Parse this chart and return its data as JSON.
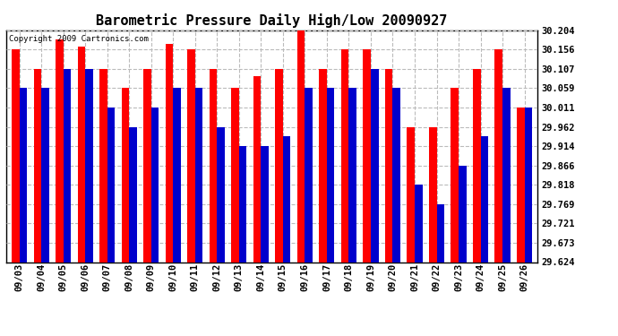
{
  "title": "Barometric Pressure Daily High/Low 20090927",
  "copyright": "Copyright 2009 Cartronics.com",
  "dates": [
    "09/03",
    "09/04",
    "09/05",
    "09/06",
    "09/07",
    "09/08",
    "09/09",
    "09/10",
    "09/11",
    "09/12",
    "09/13",
    "09/14",
    "09/15",
    "09/16",
    "09/17",
    "09/18",
    "09/19",
    "09/20",
    "09/21",
    "09/22",
    "09/23",
    "09/24",
    "09/25",
    "09/26"
  ],
  "highs": [
    30.156,
    30.107,
    30.18,
    30.163,
    30.107,
    30.059,
    30.107,
    30.17,
    30.156,
    30.107,
    30.059,
    30.09,
    30.107,
    30.204,
    30.107,
    30.156,
    30.156,
    30.107,
    29.962,
    29.962,
    30.059,
    30.107,
    30.156,
    30.011
  ],
  "lows": [
    30.059,
    30.059,
    30.107,
    30.107,
    30.011,
    29.962,
    30.011,
    30.059,
    30.059,
    29.962,
    29.914,
    29.914,
    29.938,
    30.059,
    30.059,
    30.059,
    30.107,
    30.059,
    29.818,
    29.769,
    29.866,
    29.938,
    30.059,
    30.011
  ],
  "high_color": "#ff0000",
  "low_color": "#0000cc",
  "bg_color": "#ffffff",
  "yticks": [
    29.624,
    29.673,
    29.721,
    29.769,
    29.818,
    29.866,
    29.914,
    29.962,
    30.011,
    30.059,
    30.107,
    30.156,
    30.204
  ],
  "ymin": 29.624,
  "ymax": 30.204,
  "grid_color": "#bbbbbb",
  "title_fontsize": 11,
  "tick_fontsize": 7.5,
  "bar_width": 0.35
}
